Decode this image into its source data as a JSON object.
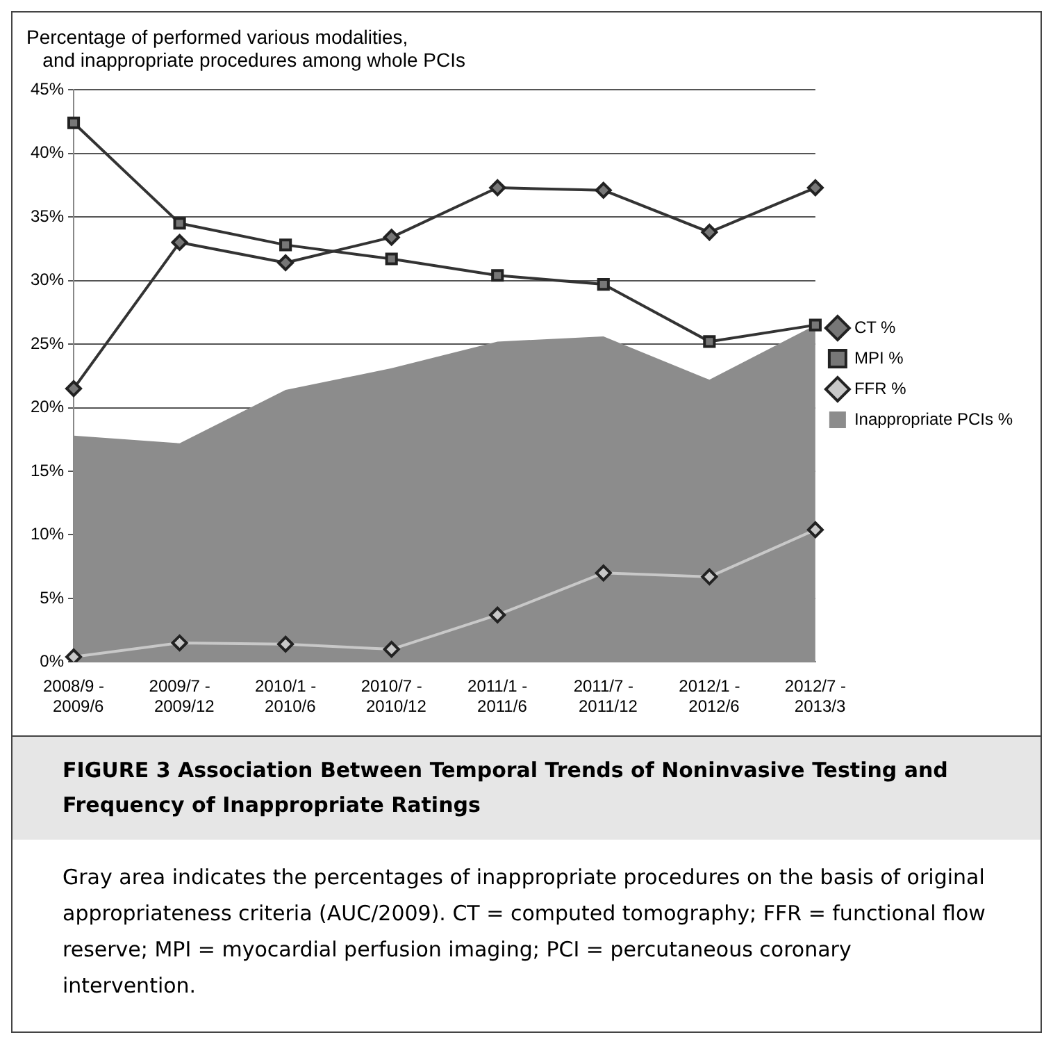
{
  "chart_data": {
    "type": "line",
    "title": "Percentage of performed various modalities,\n   and inappropriate procedures among whole PCIs",
    "categories": [
      "2008/9 - 2009/6",
      "2009/7 - 2009/12",
      "2010/1 - 2010/6",
      "2010/7 - 2010/12",
      "2011/1 - 2011/6",
      "2011/7 - 2011/12",
      "2012/1 - 2012/6",
      "2012/7 - 2013/3"
    ],
    "series": [
      {
        "name": "CT %",
        "color": "#333333",
        "marker": "diamond",
        "values": [
          21.5,
          33,
          31.4,
          33.4,
          37.3,
          37.1,
          33.8,
          37.3
        ]
      },
      {
        "name": "MPI %",
        "color": "#333333",
        "marker": "square",
        "values": [
          42.4,
          34.5,
          32.8,
          31.7,
          30.4,
          29.7,
          25.2,
          26.5
        ]
      },
      {
        "name": "FFR %",
        "color": "#c8c8c8",
        "marker": "diamond",
        "values": [
          0.4,
          1.5,
          1.4,
          1.0,
          3.7,
          7.0,
          6.7,
          10.4
        ]
      },
      {
        "name": "Inappropriate PCIs %",
        "type": "area",
        "color": "#8c8c8c",
        "values": [
          17.8,
          17.2,
          21.4,
          23.1,
          25.2,
          25.6,
          22.2,
          26.5
        ]
      }
    ],
    "ylim": [
      0,
      45
    ],
    "yticks": [
      {
        "value": 0,
        "label": "0%"
      },
      {
        "value": 5,
        "label": "5%"
      },
      {
        "value": 10,
        "label": "10%"
      },
      {
        "value": 15,
        "label": "15%"
      },
      {
        "value": 20,
        "label": "20%"
      },
      {
        "value": 25,
        "label": "25%"
      },
      {
        "value": 30,
        "label": "30%"
      },
      {
        "value": 35,
        "label": "35%"
      },
      {
        "value": 40,
        "label": "40%"
      },
      {
        "value": 45,
        "label": "45%"
      }
    ],
    "grid": "y",
    "legend": "right",
    "line_style": "solid",
    "annotations": [
      "FIGURE 3  Association Between Temporal Trends of Noninvasive Testing and Frequency of Inappropriate Ratings",
      "Gray area indicates the percentages of inappropriate procedures on the basis of original appropriateness criteria (AUC/2009). CT = computed tomography; FFR = functional flow reserve; MPI = myocardial perfusion imaging; PCI = percutaneous coronary intervention."
    ]
  }
}
